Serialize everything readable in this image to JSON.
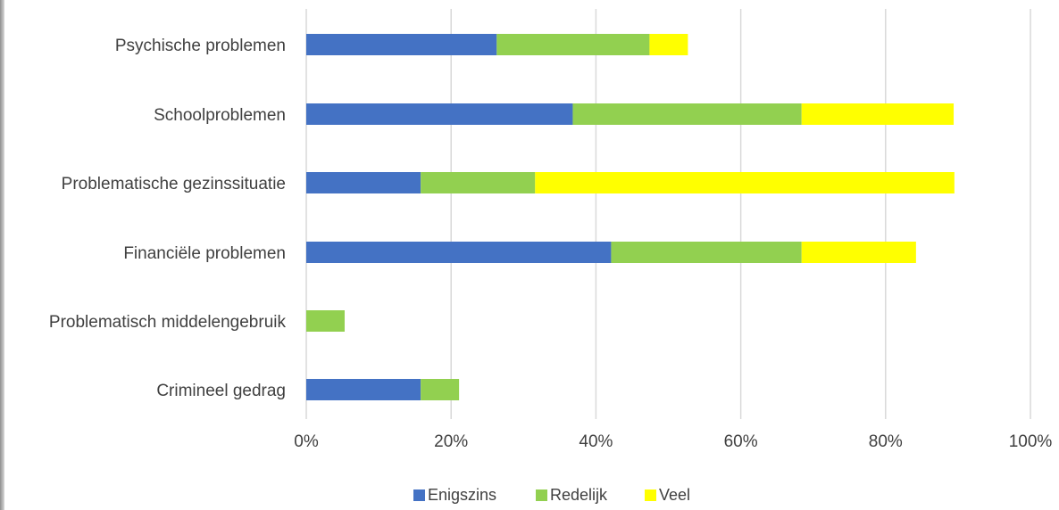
{
  "chart_data": {
    "type": "bar",
    "orientation": "horizontal",
    "stacked": true,
    "categories": [
      "Psychische problemen",
      "Schoolproblemen",
      "Problematische gezinssituatie",
      "Financiële problemen",
      "Problematisch middelengebruik",
      "Crimineel gedrag"
    ],
    "series": [
      {
        "name": "Enigszins",
        "color": "#4472C4",
        "values": [
          26.3,
          36.8,
          15.8,
          42.1,
          0,
          15.8
        ]
      },
      {
        "name": "Redelijk",
        "color": "#92D050",
        "values": [
          21.1,
          31.6,
          15.8,
          26.3,
          5.3,
          5.3
        ]
      },
      {
        "name": "Veel",
        "color": "#FFFF00",
        "values": [
          5.3,
          21.0,
          57.9,
          15.8,
          0,
          0
        ]
      }
    ],
    "xlim": [
      0,
      100
    ],
    "xticks": [
      "0%",
      "20%",
      "40%",
      "60%",
      "80%",
      "100%"
    ],
    "title": "",
    "xlabel": "",
    "ylabel": "",
    "grid": "vertical",
    "legend_position": "bottom"
  }
}
